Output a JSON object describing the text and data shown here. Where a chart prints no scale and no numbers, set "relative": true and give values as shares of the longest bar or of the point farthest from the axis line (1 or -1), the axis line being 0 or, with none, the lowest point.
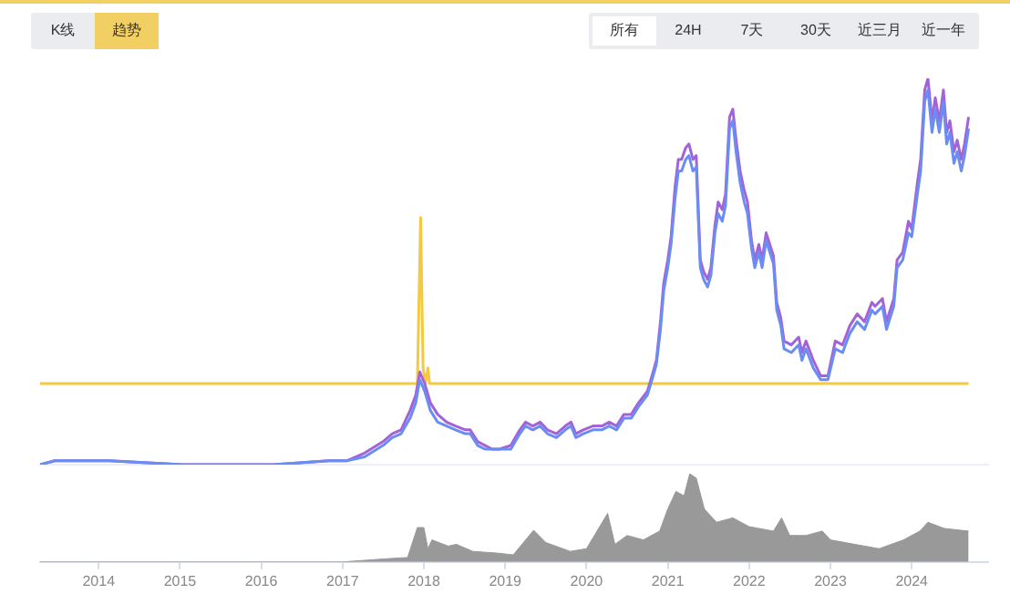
{
  "chart_data": [
    {
      "type": "line",
      "relative": true,
      "tick_labels": false,
      "grid": false,
      "legend": false,
      "marker": "none",
      "annotations": [
        "K线",
        "趋势",
        "所有",
        "24H",
        "7天",
        "30天",
        "近三月",
        "近一年"
      ],
      "xlim": [
        2013.28,
        2024.94
      ],
      "xticks": [
        2014,
        2015,
        2016,
        2017,
        2018,
        2019,
        2020,
        2021,
        2022,
        2023,
        2024
      ],
      "x": [
        2013.28,
        2013.46,
        2013.87,
        2014.13,
        2015.03,
        2016.15,
        2016.83,
        2017.05,
        2017.27,
        2017.5,
        2017.61,
        2017.72,
        2017.83,
        2017.9,
        2017.95,
        2018.01,
        2018.08,
        2018.17,
        2018.28,
        2018.39,
        2018.51,
        2018.57,
        2018.66,
        2018.75,
        2018.84,
        2018.93,
        2019.07,
        2019.18,
        2019.25,
        2019.34,
        2019.43,
        2019.52,
        2019.63,
        2019.74,
        2019.81,
        2019.87,
        2019.96,
        2020.08,
        2020.19,
        2020.28,
        2020.37,
        2020.46,
        2020.55,
        2020.64,
        2020.75,
        2020.82,
        2020.86,
        2020.91,
        2020.95,
        2021.0,
        2021.04,
        2021.09,
        2021.13,
        2021.17,
        2021.22,
        2021.26,
        2021.31,
        2021.35,
        2021.4,
        2021.44,
        2021.49,
        2021.53,
        2021.58,
        2021.62,
        2021.67,
        2021.71,
        2021.76,
        2021.8,
        2021.84,
        2021.89,
        2021.94,
        2021.98,
        2022.03,
        2022.07,
        2022.12,
        2022.16,
        2022.21,
        2022.3,
        2022.34,
        2022.39,
        2022.43,
        2022.52,
        2022.61,
        2022.65,
        2022.7,
        2022.79,
        2022.88,
        2022.97,
        2023.06,
        2023.15,
        2023.24,
        2023.33,
        2023.42,
        2023.51,
        2023.55,
        2023.64,
        2023.69,
        2023.78,
        2023.82,
        2023.89,
        2023.96,
        2024.0,
        2024.07,
        2024.11,
        2024.16,
        2024.2,
        2024.25,
        2024.29,
        2024.34,
        2024.39,
        2024.43,
        2024.47,
        2024.52,
        2024.56,
        2024.61,
        2024.65,
        2024.7
      ],
      "series": [
        {
          "color": "#6b8cf2",
          "values": [
            0,
            0.01,
            0.01,
            0.01,
            0,
            0,
            0.01,
            0.01,
            0.02,
            0.05,
            0.07,
            0.08,
            0.12,
            0.16,
            0.22,
            0.19,
            0.14,
            0.11,
            0.1,
            0.09,
            0.08,
            0.08,
            0.05,
            0.04,
            0.04,
            0.04,
            0.04,
            0.08,
            0.1,
            0.09,
            0.1,
            0.08,
            0.07,
            0.09,
            0.1,
            0.07,
            0.08,
            0.09,
            0.09,
            0.1,
            0.09,
            0.12,
            0.12,
            0.15,
            0.18,
            0.23,
            0.26,
            0.35,
            0.45,
            0.51,
            0.57,
            0.69,
            0.76,
            0.76,
            0.79,
            0.8,
            0.76,
            0.77,
            0.51,
            0.48,
            0.46,
            0.49,
            0.6,
            0.65,
            0.63,
            0.67,
            0.87,
            0.89,
            0.81,
            0.73,
            0.68,
            0.65,
            0.56,
            0.51,
            0.55,
            0.51,
            0.58,
            0.52,
            0.4,
            0.36,
            0.3,
            0.29,
            0.31,
            0.27,
            0.3,
            0.25,
            0.22,
            0.22,
            0.3,
            0.29,
            0.34,
            0.37,
            0.35,
            0.4,
            0.39,
            0.41,
            0.35,
            0.41,
            0.51,
            0.53,
            0.6,
            0.59,
            0.7,
            0.76,
            0.94,
            0.97,
            0.86,
            0.92,
            0.86,
            0.94,
            0.83,
            0.86,
            0.78,
            0.81,
            0.76,
            0.8,
            0.87
          ]
        },
        {
          "color": "#a263d9",
          "values": [
            0,
            0.01,
            0.01,
            0.01,
            0,
            0,
            0.01,
            0.01,
            0.03,
            0.06,
            0.08,
            0.09,
            0.14,
            0.18,
            0.24,
            0.21,
            0.16,
            0.13,
            0.11,
            0.1,
            0.09,
            0.09,
            0.06,
            0.05,
            0.04,
            0.04,
            0.05,
            0.09,
            0.11,
            0.1,
            0.11,
            0.09,
            0.08,
            0.1,
            0.11,
            0.08,
            0.09,
            0.1,
            0.1,
            0.11,
            0.1,
            0.13,
            0.13,
            0.16,
            0.19,
            0.24,
            0.27,
            0.37,
            0.47,
            0.53,
            0.59,
            0.72,
            0.79,
            0.79,
            0.82,
            0.83,
            0.79,
            0.8,
            0.53,
            0.5,
            0.48,
            0.51,
            0.62,
            0.68,
            0.66,
            0.7,
            0.9,
            0.92,
            0.84,
            0.76,
            0.71,
            0.68,
            0.58,
            0.53,
            0.57,
            0.53,
            0.6,
            0.54,
            0.42,
            0.38,
            0.32,
            0.31,
            0.33,
            0.29,
            0.32,
            0.27,
            0.23,
            0.23,
            0.32,
            0.31,
            0.36,
            0.39,
            0.37,
            0.42,
            0.41,
            0.43,
            0.37,
            0.43,
            0.53,
            0.55,
            0.63,
            0.61,
            0.73,
            0.79,
            0.97,
            1,
            0.89,
            0.95,
            0.89,
            0.97,
            0.86,
            0.89,
            0.81,
            0.84,
            0.79,
            0.83,
            0.9
          ]
        },
        {
          "color": "#f5c842",
          "x": [
            2013.28,
            2017.92,
            2017.96,
            2017.99,
            2018.02,
            2018.05,
            2018.07,
            2024.7
          ],
          "values": [
            0.21,
            0.21,
            0.64,
            0.25,
            0.21,
            0.25,
            0.21,
            0.21
          ]
        }
      ]
    },
    {
      "type": "area",
      "relative": true,
      "tick_labels": "x",
      "grid": false,
      "legend": false,
      "marker": "none",
      "xlim": [
        2013.28,
        2024.94
      ],
      "xticks": [
        2014,
        2015,
        2016,
        2017,
        2018,
        2019,
        2020,
        2021,
        2022,
        2023,
        2024
      ],
      "x": [
        2013.28,
        2017.0,
        2017.3,
        2017.6,
        2017.8,
        2017.92,
        2018.0,
        2018.05,
        2018.1,
        2018.3,
        2018.4,
        2018.6,
        2018.9,
        2019.1,
        2019.35,
        2019.5,
        2019.8,
        2020.0,
        2020.26,
        2020.35,
        2020.5,
        2020.7,
        2020.9,
        2021.0,
        2021.1,
        2021.2,
        2021.27,
        2021.35,
        2021.45,
        2021.6,
        2021.8,
        2022.0,
        2022.3,
        2022.4,
        2022.5,
        2022.7,
        2022.9,
        2023.0,
        2023.3,
        2023.6,
        2023.9,
        2024.1,
        2024.2,
        2024.4,
        2024.7
      ],
      "series": [
        {
          "color": "#999999",
          "values": [
            0,
            0,
            0.02,
            0.04,
            0.05,
            0.39,
            0.39,
            0.15,
            0.25,
            0.18,
            0.2,
            0.12,
            0.1,
            0.08,
            0.36,
            0.22,
            0.12,
            0.15,
            0.55,
            0.2,
            0.3,
            0.25,
            0.35,
            0.6,
            0.8,
            0.75,
            1,
            0.95,
            0.6,
            0.45,
            0.5,
            0.4,
            0.35,
            0.5,
            0.3,
            0.3,
            0.35,
            0.25,
            0.2,
            0.15,
            0.25,
            0.35,
            0.45,
            0.38,
            0.35
          ]
        }
      ]
    }
  ]
}
